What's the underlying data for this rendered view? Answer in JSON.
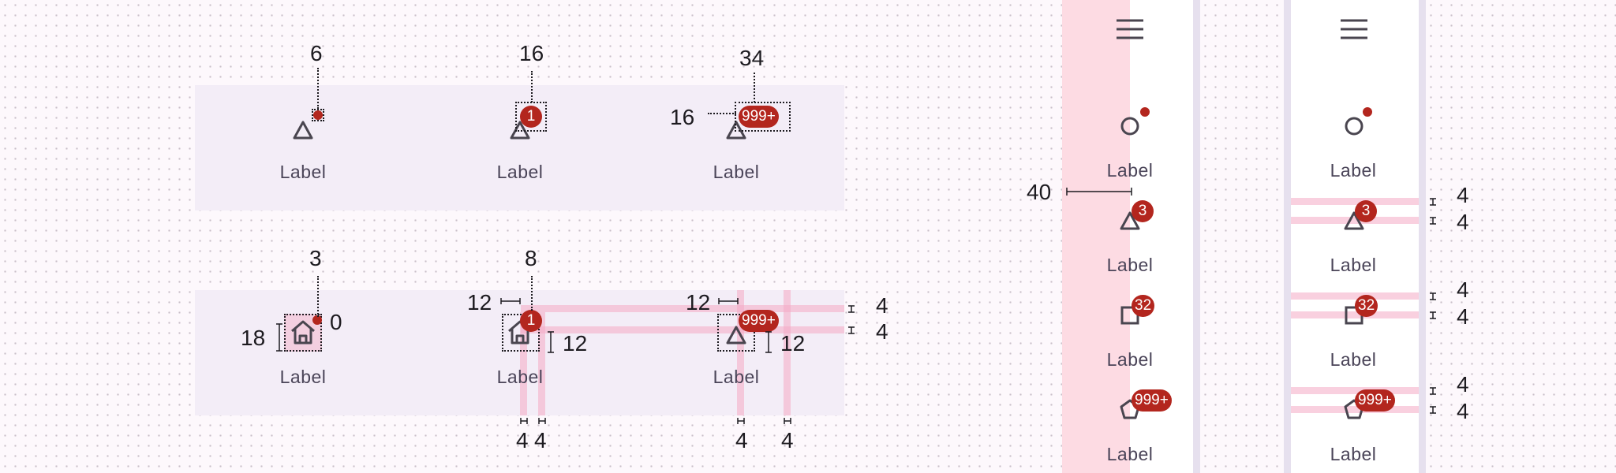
{
  "colors": {
    "badge": "#b3261e",
    "panel": "#f3edf7",
    "highlight": "#f4aac4",
    "rail_bg": "#ffffff",
    "divider": "#e6e0ee"
  },
  "top_row": {
    "items": [
      {
        "label": "Label",
        "size": "6",
        "icon": "triangle-icon"
      },
      {
        "label": "Label",
        "size": "16",
        "badge": "1",
        "icon": "triangle-icon"
      },
      {
        "label": "Label",
        "size": "34",
        "height": "16",
        "badge": "999+",
        "icon": "triangle-icon"
      }
    ]
  },
  "bottom_row": {
    "items": [
      {
        "label": "Label",
        "offset": "3",
        "zero": "0",
        "height": "18",
        "icon": "home-icon"
      },
      {
        "label": "Label",
        "offset": "8",
        "left": "12",
        "right": "12",
        "badge": "1",
        "icon": "home-icon"
      },
      {
        "label": "Label",
        "left": "12",
        "right": "12",
        "badge": "999+",
        "icon": "triangle-icon"
      }
    ],
    "right_measures": [
      "4",
      "4"
    ],
    "bottom_measures": [
      "4",
      "4",
      "4",
      "4"
    ]
  },
  "rail_one": {
    "menu_icon": "menu-icon",
    "width_measure": "40",
    "items": [
      {
        "label": "Label",
        "icon": "circle-icon"
      },
      {
        "label": "Label",
        "badge": "3",
        "icon": "triangle-icon"
      },
      {
        "label": "Label",
        "badge": "32",
        "icon": "square-icon"
      },
      {
        "label": "Label",
        "badge": "999+",
        "icon": "pentagon-icon"
      }
    ]
  },
  "rail_two": {
    "menu_icon": "menu-icon",
    "items": [
      {
        "label": "Label",
        "icon": "circle-icon"
      },
      {
        "label": "Label",
        "badge": "3",
        "icon": "triangle-icon"
      },
      {
        "label": "Label",
        "badge": "32",
        "icon": "square-icon"
      },
      {
        "label": "Label",
        "badge": "999+",
        "icon": "pentagon-icon"
      }
    ],
    "measures": [
      "4",
      "4",
      "4",
      "4",
      "4",
      "4"
    ]
  }
}
